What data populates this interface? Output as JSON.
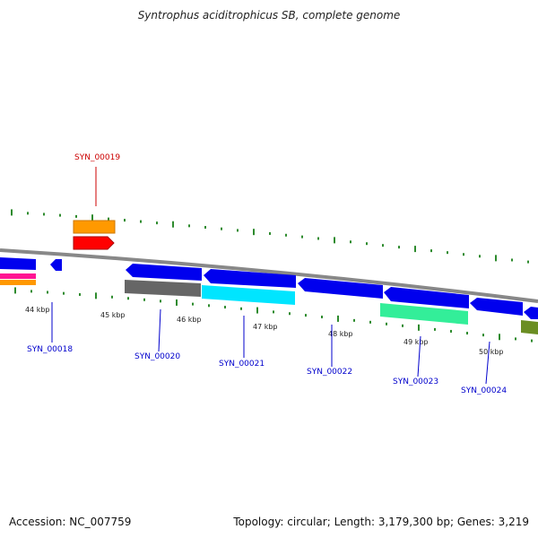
{
  "title": "Syntrophus aciditrophicus SB, complete genome",
  "footer": {
    "accession_label": "Accession:",
    "accession": "NC_007759",
    "topology_label": "Topology:",
    "topology": "circular",
    "length_label": "Length:",
    "length": "3,179,300 bp",
    "genes_label": "Genes:",
    "genes": "3,219"
  },
  "colors": {
    "backbone": "#888888",
    "tick": "#2e8b2e",
    "gene_blue": "#0000ee",
    "orange": "#ff9900",
    "red": "#ff0000",
    "magenta": "#ff1493",
    "gray_feature": "#666666",
    "cyan": "#00e5ff",
    "green_feature": "#33ee99",
    "olive": "#6b8e23",
    "label_blue": "#0000cc",
    "label_red": "#cc0000"
  },
  "kbp_labels": [
    "44 kbp",
    "45 kbp",
    "46 kbp",
    "47 kbp",
    "48 kbp",
    "49 kbp",
    "50 kbp"
  ],
  "gene_labels": [
    {
      "text": "SYN_00018",
      "color": "label_blue"
    },
    {
      "text": "SYN_00019",
      "color": "label_red"
    },
    {
      "text": "SYN_00020",
      "color": "label_blue"
    },
    {
      "text": "SYN_00021",
      "color": "label_blue"
    },
    {
      "text": "SYN_00022",
      "color": "label_blue"
    },
    {
      "text": "SYN_00023",
      "color": "label_blue"
    },
    {
      "text": "SYN_00024",
      "color": "label_blue"
    }
  ]
}
